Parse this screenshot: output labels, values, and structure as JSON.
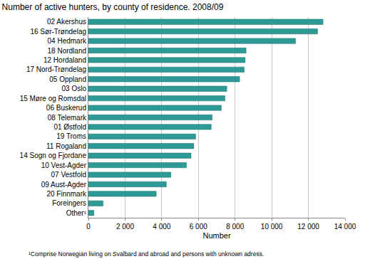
{
  "chart_data": {
    "type": "bar",
    "orientation": "horizontal",
    "title": "Number of active hunters, by county of residence. 2008/09",
    "x_label": "Number",
    "footnote": "¹Comprise Norwegian living on Svalbard and abroad and persons with unknown adress.",
    "categories": [
      "02 Akershus",
      "16 Sør-Trøndelag",
      "04 Hedmark",
      "18 Nordland",
      "12 Hordaland",
      "17 Nord-Trøndelag",
      "05 Oppland",
      "03 Oslo",
      "15 Møre og Romsdal",
      "06 Buskerud",
      "08 Telemark",
      "01 Østfold",
      "19 Troms",
      "11 Rogaland",
      "14 Sogn og Fjordane",
      "10 Vest-Agder",
      "07 Vestfold",
      "09 Aust-Agder",
      "20 Finnmark",
      "Foreingers",
      "Other¹"
    ],
    "values": [
      12800,
      12500,
      11300,
      8600,
      8550,
      8500,
      8250,
      7550,
      7450,
      7250,
      6750,
      6700,
      5850,
      5750,
      5600,
      5350,
      4500,
      4250,
      3700,
      800,
      300
    ],
    "color": "#2e9a96",
    "xlim": [
      0,
      14000
    ],
    "xticks": [
      0,
      {
        "value": 2000,
        "label": "2 000"
      },
      {
        "value": 4000,
        "label": "4 000"
      },
      {
        "value": 6000,
        "label": "6 000"
      },
      {
        "value": 8000,
        "label": "8 000"
      },
      {
        "value": 10000,
        "label": "10 000"
      },
      {
        "value": 12000,
        "label": "12 000"
      },
      {
        "value": 14000,
        "label": "14 000"
      }
    ],
    "grid": true
  }
}
